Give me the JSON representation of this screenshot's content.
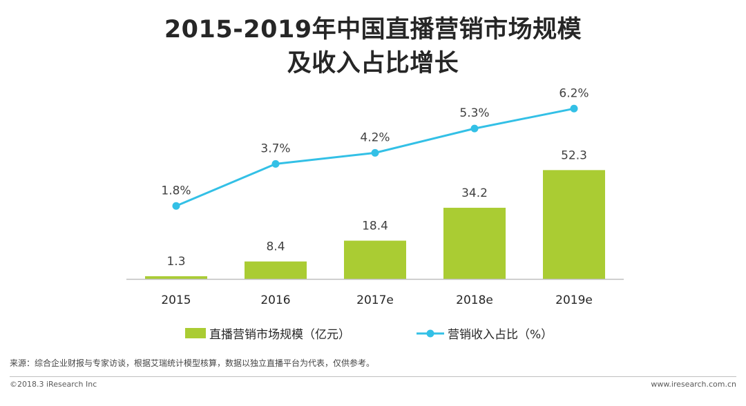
{
  "title": {
    "line1": "2015-2019年中国直播营销市场规模",
    "line2": "及收入占比增长"
  },
  "colors": {
    "bar": "#aacc33",
    "line": "#33c0e6",
    "axis": "#bfbfbf"
  },
  "chart_data": {
    "type": "bar+line",
    "categories": [
      "2015",
      "2016",
      "2017e",
      "2018e",
      "2019e"
    ],
    "series": [
      {
        "name": "直播营销市场规模（亿元）",
        "kind": "bar",
        "values": [
          1.3,
          8.4,
          18.4,
          34.2,
          52.3
        ],
        "labels": [
          "1.3",
          "8.4",
          "18.4",
          "34.2",
          "52.3"
        ]
      },
      {
        "name": "营销收入占比（%）",
        "kind": "line",
        "values": [
          1.8,
          3.7,
          4.2,
          5.3,
          6.2
        ],
        "labels": [
          "1.8%",
          "3.7%",
          "4.2%",
          "5.3%",
          "6.2%"
        ]
      }
    ],
    "bar_axis_range": [
      0,
      100
    ],
    "line_axis_range": [
      -1.5,
      8.3
    ],
    "gridlines": false,
    "legend_position": "bottom"
  },
  "footer": {
    "source": "来源：综合企业财报与专家访谈，根据艾瑞统计模型核算，数据以独立直播平台为代表，仅供参考。",
    "copyright": "©2018.3 iResearch Inc",
    "website": "www.iresearch.com.cn"
  }
}
